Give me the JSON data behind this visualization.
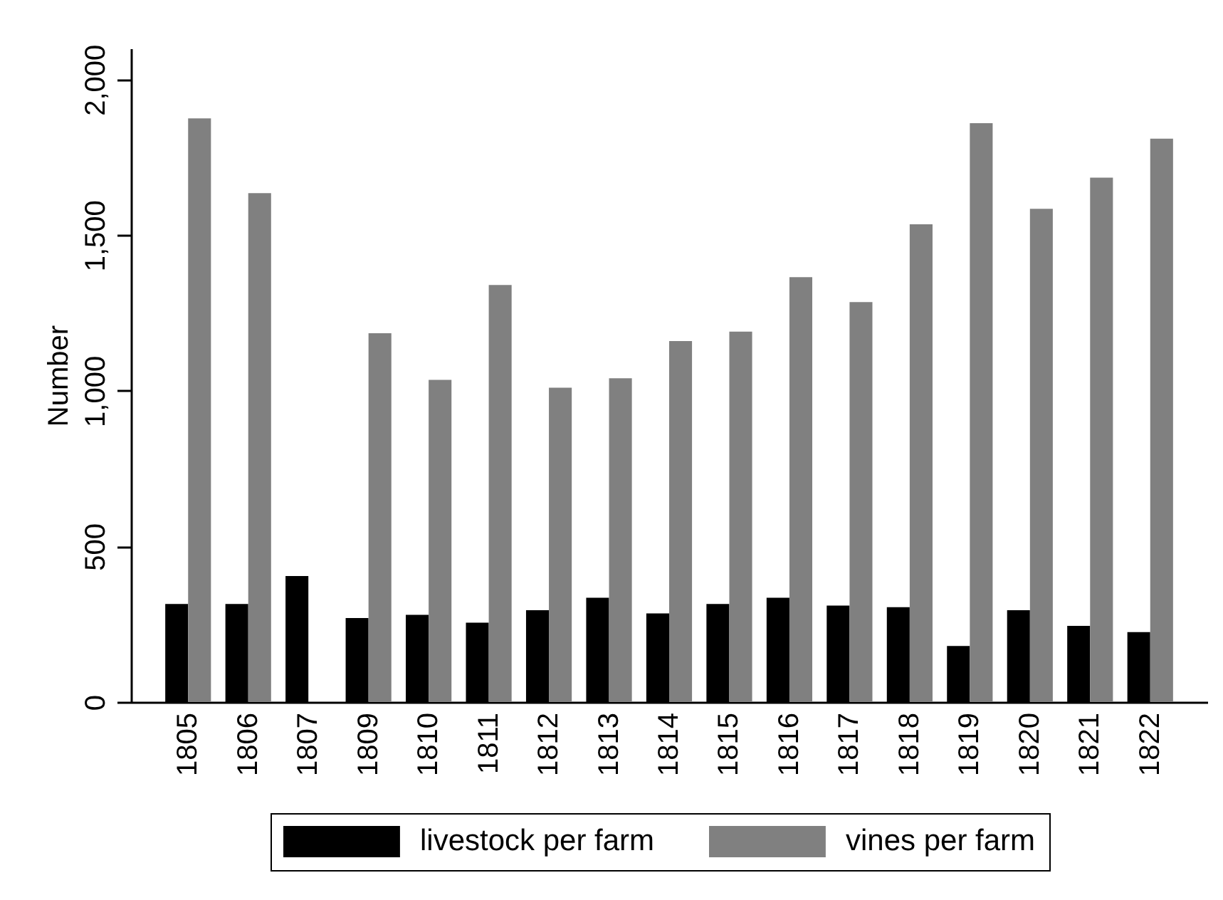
{
  "chart_data": {
    "type": "bar",
    "ylabel": "Number",
    "categories": [
      "1805",
      "1806",
      "1807",
      "1809",
      "1810",
      "1811",
      "1812",
      "1813",
      "1814",
      "1815",
      "1816",
      "1817",
      "1818",
      "1819",
      "1820",
      "1821",
      "1822"
    ],
    "series": [
      {
        "name": "livestock per farm",
        "color": "#000000",
        "values": [
          315,
          315,
          405,
          270,
          280,
          255,
          295,
          335,
          285,
          315,
          335,
          310,
          305,
          180,
          295,
          245,
          225
        ]
      },
      {
        "name": "vines per farm",
        "color": "#808080",
        "values": [
          1875,
          1635,
          null,
          1185,
          1035,
          1340,
          1010,
          1040,
          1160,
          1190,
          1365,
          1285,
          1535,
          1860,
          1585,
          1685,
          1810
        ]
      }
    ],
    "ylim": [
      0,
      2100
    ],
    "yticks": [
      0,
      500,
      {
        "value": 1000,
        "label": "1,000"
      },
      {
        "value": 1500,
        "label": "1,500"
      },
      {
        "value": 2000,
        "label": "2,000"
      }
    ],
    "grid": false,
    "legend": "bottom"
  }
}
